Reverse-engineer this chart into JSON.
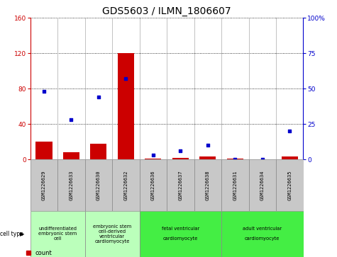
{
  "title": "GDS5603 / ILMN_1806607",
  "samples": [
    "GSM1226629",
    "GSM1226633",
    "GSM1226630",
    "GSM1226632",
    "GSM1226636",
    "GSM1226637",
    "GSM1226638",
    "GSM1226631",
    "GSM1226634",
    "GSM1226635"
  ],
  "counts": [
    20,
    8,
    18,
    120,
    1,
    2,
    3,
    1,
    0,
    3
  ],
  "percentiles": [
    48,
    28,
    44,
    57,
    3,
    6,
    10,
    0,
    0,
    20
  ],
  "ylim_left": [
    0,
    160
  ],
  "ylim_right": [
    0,
    100
  ],
  "yticks_left": [
    0,
    40,
    80,
    120,
    160
  ],
  "yticks_right": [
    0,
    25,
    50,
    75,
    100
  ],
  "cell_types": [
    {
      "label": "undifferentiated\nembryonic stem\ncell",
      "color": "#bbffbb",
      "span": [
        0,
        2
      ]
    },
    {
      "label": "embryonic stem\ncell-derived\nventricular\ncardiomyocyte",
      "color": "#bbffbb",
      "span": [
        2,
        4
      ]
    },
    {
      "label": "fetal ventricular\n\ncardiomyocyte",
      "color": "#44ee44",
      "span": [
        4,
        7
      ]
    },
    {
      "label": "adult ventricular\n\ncardiomyocyte",
      "color": "#44ee44",
      "span": [
        7,
        10
      ]
    }
  ],
  "bar_color": "#cc0000",
  "dot_color": "#0000cc",
  "background_color": "#ffffff",
  "plot_bg_color": "#ffffff",
  "tick_area_color": "#c8c8c8",
  "left_axis_color": "#cc0000",
  "right_axis_color": "#0000cc",
  "title_fontsize": 10,
  "tick_fontsize": 6.5,
  "sample_fontsize": 5.0,
  "cell_type_fontsize": 4.8
}
